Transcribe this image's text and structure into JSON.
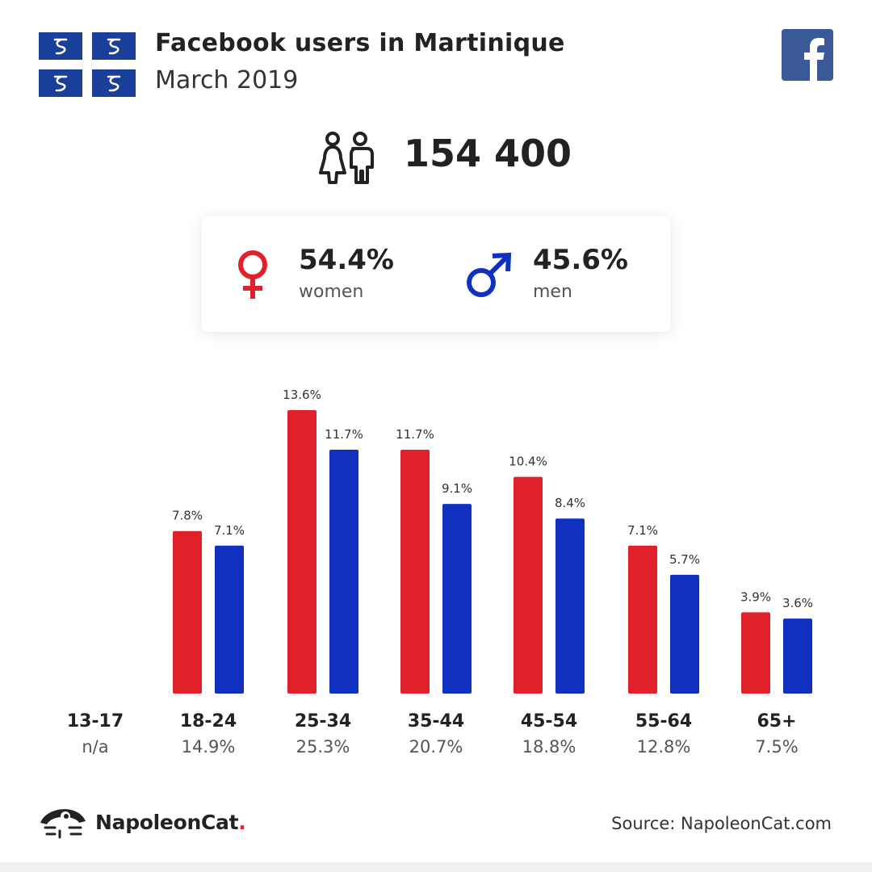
{
  "header": {
    "title": "Facebook users in Martinique",
    "subtitle": "March 2019"
  },
  "flag": {
    "background": "#1a3f9a",
    "emblem": "snake-emblem",
    "count": 4
  },
  "facebook": {
    "icon": "facebook-logo-icon",
    "color": "#3b5998"
  },
  "total": {
    "icon": "users-icon",
    "value": "154 400"
  },
  "gender": {
    "women": {
      "percent": "54.4%",
      "label": "women",
      "icon": "female-symbol-icon",
      "color": "#e0202a"
    },
    "men": {
      "percent": "45.6%",
      "label": "men",
      "icon": "male-symbol-icon",
      "color": "#1030c0"
    }
  },
  "chart_data": {
    "type": "bar",
    "categories": [
      "13-17",
      "18-24",
      "25-34",
      "35-44",
      "45-54",
      "55-64",
      "65+"
    ],
    "category_totals": [
      "n/a",
      "14.9%",
      "25.3%",
      "20.7%",
      "18.8%",
      "12.8%",
      "7.5%"
    ],
    "series": [
      {
        "name": "women",
        "color": "#e0202a",
        "values": [
          null,
          7.8,
          13.6,
          11.7,
          10.4,
          7.1,
          3.9
        ]
      },
      {
        "name": "men",
        "color": "#1030c0",
        "values": [
          null,
          7.1,
          11.7,
          9.1,
          8.4,
          5.7,
          3.6
        ]
      }
    ],
    "value_suffix": "%",
    "ylim": [
      0,
      13.6
    ],
    "grid": false
  },
  "footer": {
    "brand": "NapoleonCat",
    "brand_dot": ".",
    "source": "Source: NapoleonCat.com"
  }
}
